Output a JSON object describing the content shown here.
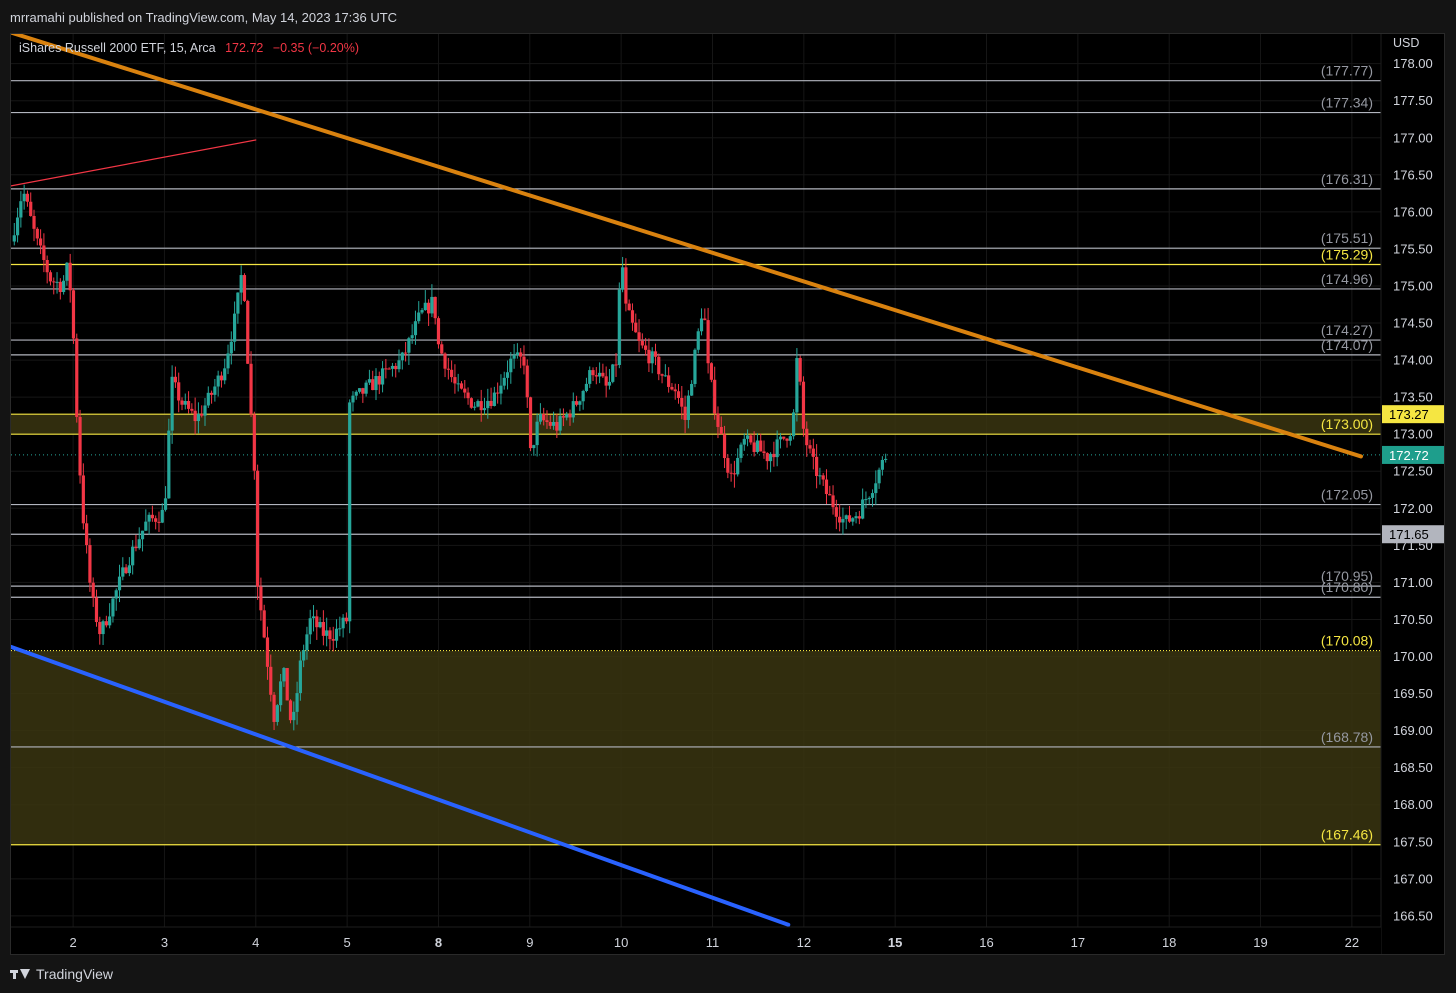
{
  "header": {
    "published": "mrramahi published on TradingView.com, May 14, 2023 17:36 UTC"
  },
  "legend": {
    "symbol": "iShares Russell 2000 ETF, 15, Arca",
    "price": "172.72",
    "change": "−0.35 (−0.20%)"
  },
  "footer": {
    "brand": "TradingView"
  },
  "colors": {
    "background": "#000000",
    "up": "#26a69a",
    "down": "#f23645",
    "orange_trend": "#d9820f",
    "blue_trend": "#2962ff",
    "pink_line": "#f23645",
    "yellow": "#f5e642",
    "white_level": "#b2b5be",
    "zone": "#3a3510"
  },
  "chart_data": {
    "type": "candlestick",
    "currency": "USD",
    "ylim": [
      166.35,
      178.4
    ],
    "y_ticks": [
      "178.00",
      "177.50",
      "177.00",
      "176.50",
      "176.00",
      "175.50",
      "175.00",
      "174.50",
      "174.00",
      "173.50",
      "173.00",
      "172.50",
      "172.00",
      "171.50",
      "171.00",
      "170.50",
      "170.00",
      "169.50",
      "169.00",
      "168.50",
      "168.00",
      "167.50",
      "167.00",
      "166.50"
    ],
    "x_ticks": [
      {
        "label": "2",
        "pos": 2
      },
      {
        "label": "3",
        "pos": 3
      },
      {
        "label": "4",
        "pos": 4
      },
      {
        "label": "5",
        "pos": 5
      },
      {
        "label": "8",
        "pos": 6
      },
      {
        "label": "9",
        "pos": 7
      },
      {
        "label": "10",
        "pos": 8
      },
      {
        "label": "11",
        "pos": 9
      },
      {
        "label": "12",
        "pos": 10
      },
      {
        "label": "15",
        "pos": 11
      },
      {
        "label": "16",
        "pos": 12
      },
      {
        "label": "17",
        "pos": 13
      },
      {
        "label": "18",
        "pos": 14
      },
      {
        "label": "19",
        "pos": 15
      },
      {
        "label": "22",
        "pos": 16
      }
    ],
    "x_range": [
      1.32,
      16.1
    ],
    "levels": [
      {
        "value": 177.77,
        "label": "(177.77)",
        "style": "white"
      },
      {
        "value": 177.34,
        "label": "(177.34)",
        "style": "white"
      },
      {
        "value": 176.31,
        "label": "(176.31)",
        "style": "white"
      },
      {
        "value": 175.51,
        "label": "(175.51)",
        "style": "white"
      },
      {
        "value": 175.29,
        "label": "(175.29)",
        "style": "yellow"
      },
      {
        "value": 174.96,
        "label": "(174.96)",
        "style": "white"
      },
      {
        "value": 174.27,
        "label": "(174.27)",
        "style": "white_nolabel_line"
      },
      {
        "value": 174.07,
        "label": "(174.07)",
        "style": "white"
      },
      {
        "value": 173.27,
        "label": "",
        "style": "yellow"
      },
      {
        "value": 173.0,
        "label": "(173.00)",
        "style": "yellow"
      },
      {
        "value": 172.05,
        "label": "(172.05)",
        "style": "white"
      },
      {
        "value": 171.65,
        "label": "",
        "style": "white"
      },
      {
        "value": 170.95,
        "label": "(170.95)",
        "style": "white_nolabel_line"
      },
      {
        "value": 170.8,
        "label": "(170.80)",
        "style": "white"
      },
      {
        "value": 170.08,
        "label": "(170.08)",
        "style": "yellow_dotted"
      },
      {
        "value": 168.78,
        "label": "(168.78)",
        "style": "white"
      },
      {
        "value": 167.46,
        "label": "(167.46)",
        "style": "yellow"
      }
    ],
    "zones": [
      {
        "from": 173.0,
        "to": 173.27
      },
      {
        "from": 167.46,
        "to": 170.08
      }
    ],
    "axis_badges": [
      {
        "value": 173.27,
        "label": "173.27",
        "style": "yellow"
      },
      {
        "value": 172.72,
        "label": "172.72",
        "style": "green"
      },
      {
        "value": 171.65,
        "label": "171.65",
        "style": "grey"
      }
    ],
    "last_price": 172.72,
    "trendlines": [
      {
        "name": "orange",
        "points": [
          [
            1.32,
            178.42
          ],
          [
            16.1,
            172.7
          ]
        ]
      },
      {
        "name": "blue",
        "points": [
          [
            1.32,
            170.13
          ],
          [
            9.83,
            166.38
          ]
        ]
      },
      {
        "name": "pink",
        "points": [
          [
            1.32,
            176.35
          ],
          [
            4.0,
            176.97
          ]
        ]
      }
    ],
    "anchors": [
      [
        1.32,
        175.6
      ],
      [
        1.45,
        176.3
      ],
      [
        1.6,
        175.6
      ],
      [
        1.75,
        175.1
      ],
      [
        1.88,
        175.0
      ],
      [
        1.95,
        175.3
      ],
      [
        2.0,
        174.4
      ],
      [
        2.05,
        173.0
      ],
      [
        2.1,
        172.0
      ],
      [
        2.2,
        170.8
      ],
      [
        2.3,
        170.3
      ],
      [
        2.45,
        170.8
      ],
      [
        2.6,
        171.3
      ],
      [
        2.8,
        171.8
      ],
      [
        3.0,
        171.95
      ],
      [
        3.02,
        172.4
      ],
      [
        3.08,
        173.7
      ],
      [
        3.2,
        173.4
      ],
      [
        3.35,
        173.2
      ],
      [
        3.5,
        173.5
      ],
      [
        3.65,
        173.9
      ],
      [
        3.78,
        174.6
      ],
      [
        3.86,
        175.3
      ],
      [
        3.9,
        174.3
      ],
      [
        3.95,
        173.2
      ],
      [
        4.0,
        172.3
      ],
      [
        4.02,
        171.0
      ],
      [
        4.1,
        170.2
      ],
      [
        4.2,
        169.2
      ],
      [
        4.3,
        169.8
      ],
      [
        4.4,
        169.0
      ],
      [
        4.5,
        170.0
      ],
      [
        4.6,
        170.5
      ],
      [
        4.75,
        170.3
      ],
      [
        4.85,
        170.3
      ],
      [
        5.0,
        170.5
      ],
      [
        5.02,
        173.4
      ],
      [
        5.2,
        173.6
      ],
      [
        5.4,
        173.8
      ],
      [
        5.6,
        174.0
      ],
      [
        5.8,
        174.6
      ],
      [
        5.95,
        174.8
      ],
      [
        6.0,
        174.2
      ],
      [
        6.2,
        173.6
      ],
      [
        6.4,
        173.4
      ],
      [
        6.6,
        173.5
      ],
      [
        6.8,
        174.0
      ],
      [
        6.95,
        174.0
      ],
      [
        7.0,
        172.7
      ],
      [
        7.1,
        173.2
      ],
      [
        7.3,
        173.1
      ],
      [
        7.5,
        173.4
      ],
      [
        7.7,
        173.9
      ],
      [
        7.85,
        173.6
      ],
      [
        7.95,
        174.0
      ],
      [
        8.0,
        175.5
      ],
      [
        8.05,
        174.7
      ],
      [
        8.2,
        174.2
      ],
      [
        8.35,
        174.0
      ],
      [
        8.5,
        173.7
      ],
      [
        8.6,
        173.6
      ],
      [
        8.7,
        173.2
      ],
      [
        8.8,
        174.0
      ],
      [
        8.9,
        174.8
      ],
      [
        8.95,
        173.9
      ],
      [
        9.05,
        173.2
      ],
      [
        9.2,
        172.4
      ],
      [
        9.35,
        172.9
      ],
      [
        9.5,
        172.8
      ],
      [
        9.6,
        172.7
      ],
      [
        9.75,
        172.9
      ],
      [
        9.88,
        173.1
      ],
      [
        9.93,
        174.1
      ],
      [
        10.0,
        173.0
      ],
      [
        10.1,
        172.6
      ],
      [
        10.25,
        172.2
      ],
      [
        10.35,
        172.0
      ],
      [
        10.45,
        171.8
      ],
      [
        10.6,
        171.95
      ],
      [
        10.75,
        172.3
      ],
      [
        10.9,
        172.72
      ]
    ]
  }
}
